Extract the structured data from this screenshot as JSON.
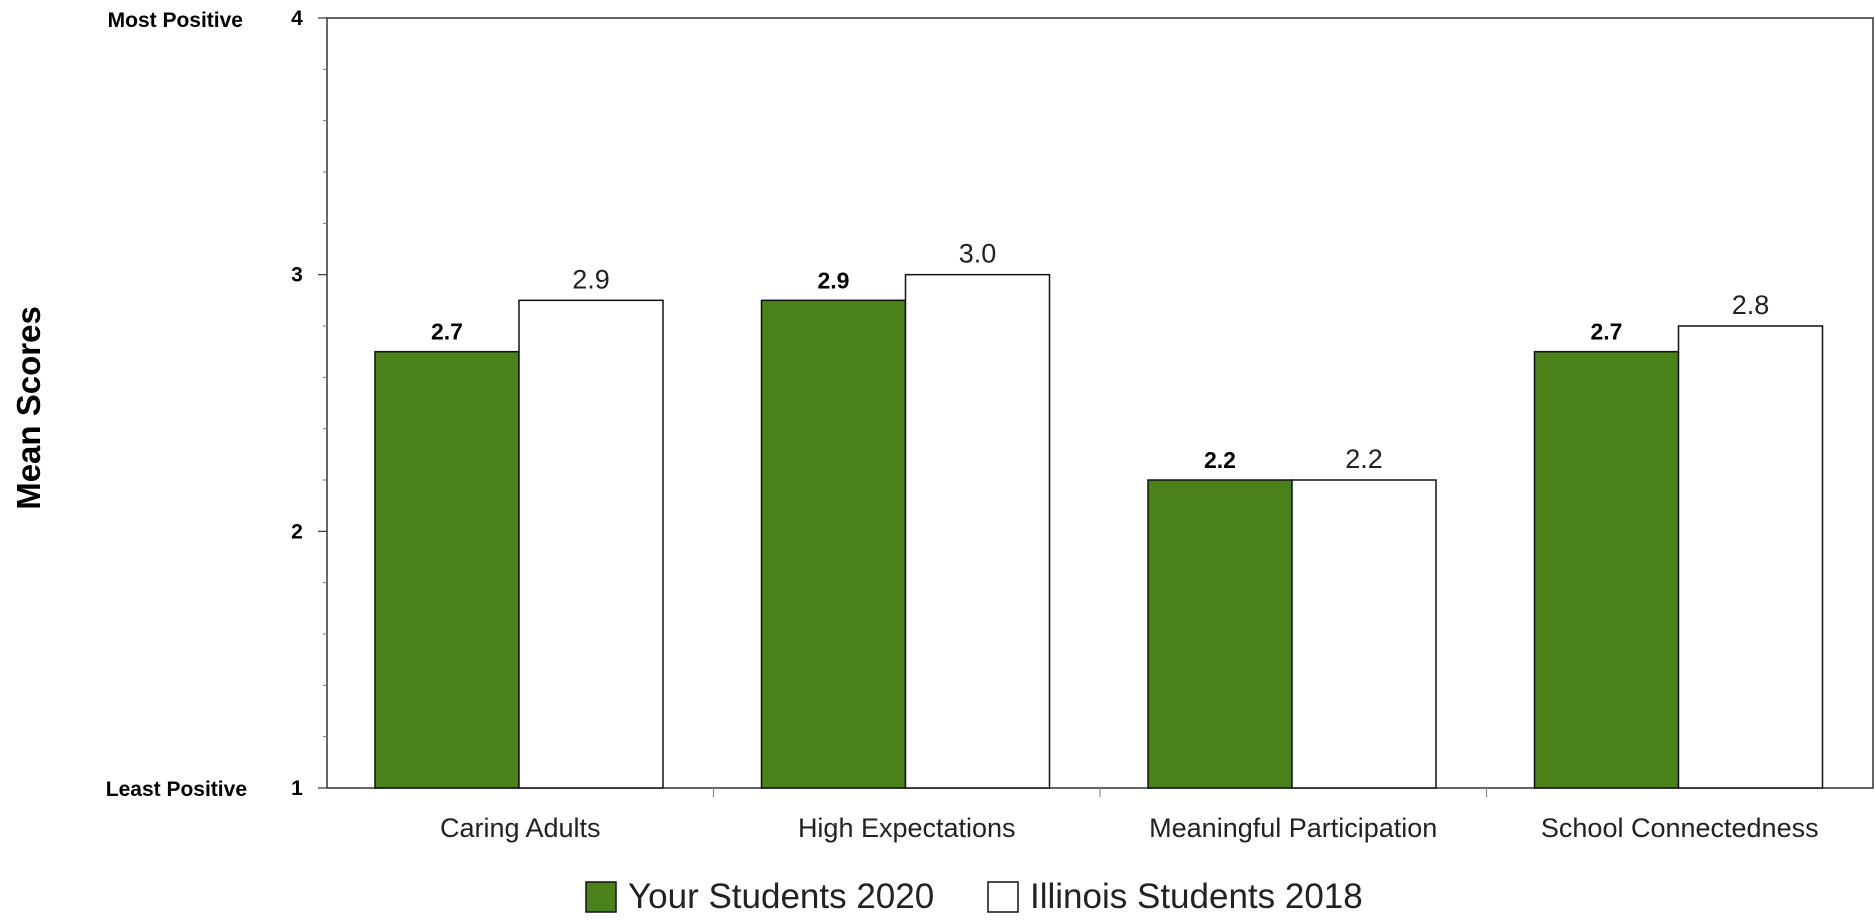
{
  "chart_data": {
    "type": "bar",
    "ylabel": "Mean Scores",
    "ylim": [
      1,
      4
    ],
    "yticks": [
      1,
      2,
      3,
      4
    ],
    "y_end_labels": {
      "top": "Most Positive",
      "bottom": "Least Positive"
    },
    "categories": [
      "Caring Adults",
      "High Expectations",
      "Meaningful Participation",
      "School Connectedness"
    ],
    "series": [
      {
        "name": "Your Students 2020",
        "values": [
          2.7,
          2.9,
          2.2,
          2.7
        ],
        "labels": [
          "2.7",
          "2.9",
          "2.2",
          "2.7"
        ],
        "color": "#4a8219"
      },
      {
        "name": "Illinois Students 2018",
        "values": [
          2.9,
          3.0,
          2.2,
          2.8
        ],
        "labels": [
          "2.9",
          "3.0",
          "2.2",
          "2.8"
        ],
        "color": "#ffffff"
      }
    ],
    "legend_position": "bottom-center",
    "grid": false
  }
}
